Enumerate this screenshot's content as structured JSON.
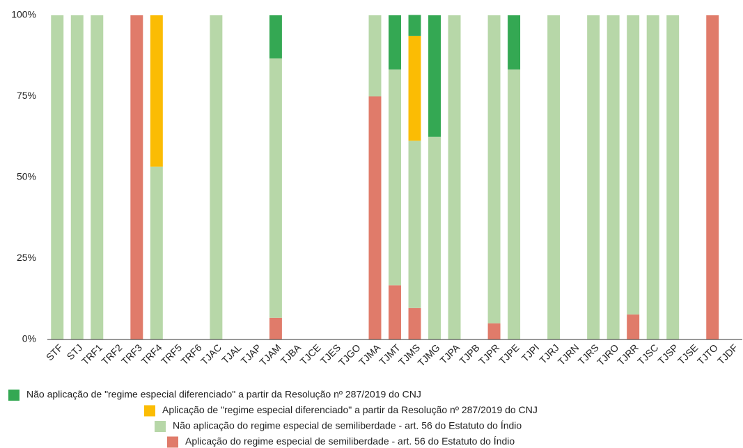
{
  "chart_data": {
    "type": "stacked_bar",
    "categories": [
      "STF",
      "STJ",
      "TRF1",
      "TRF2",
      "TRF3",
      "TRF4",
      "TRF5",
      "TRF6",
      "TJAC",
      "TJAL",
      "TJAP",
      "TJAM",
      "TJBA",
      "TJCE",
      "TJES",
      "TJGO",
      "TJMA",
      "TJMT",
      "TJMS",
      "TJMG",
      "TJPA",
      "TJPB",
      "TJPR",
      "TJPE",
      "TJPI",
      "TJRJ",
      "TJRN",
      "TJRS",
      "TJRO",
      "TJRR",
      "TJSC",
      "TJSP",
      "TJSE",
      "TJTO",
      "TJDF"
    ],
    "series": [
      {
        "name": "Não aplicação de \"regime especial diferenciado\" a partir da Resolução nº 287/2019 do CNJ",
        "color": "#34a853",
        "values": [
          0,
          0,
          0,
          0,
          0,
          0,
          0,
          0,
          0,
          0,
          0,
          13.3,
          0,
          0,
          0,
          0,
          0,
          16.7,
          6.5,
          37.5,
          0,
          0,
          0,
          16.7,
          0,
          0,
          0,
          0,
          0,
          0,
          0,
          0,
          0,
          0,
          0
        ]
      },
      {
        "name": "Aplicação de \"regime especial diferenciado\" a partir da Resolução nº 287/2019 do CNJ",
        "color": "#fbbc04",
        "values": [
          0,
          0,
          0,
          0,
          0,
          46.7,
          0,
          0,
          0,
          0,
          0,
          0,
          0,
          0,
          0,
          0,
          0,
          0,
          32.3,
          0,
          0,
          0,
          0,
          0,
          0,
          0,
          0,
          0,
          0,
          0,
          0,
          0,
          0,
          0,
          0
        ]
      },
      {
        "name": "Não aplicação do regime especial de semiliberdade - art. 56 do Estatuto do Índio",
        "color": "#b7d7a8",
        "values": [
          100,
          100,
          100,
          0,
          0,
          53.3,
          0,
          0,
          100,
          0,
          0,
          80,
          0,
          0,
          0,
          0,
          25,
          66.6,
          51.6,
          62.5,
          100,
          0,
          95,
          83.3,
          0,
          100,
          0,
          100,
          100,
          92.3,
          100,
          100,
          0,
          0,
          0
        ]
      },
      {
        "name": "Aplicação do regime especial de semiliberdade - art. 56 do Estatuto do Índio",
        "color": "#e07b6a",
        "values": [
          0,
          0,
          0,
          0,
          100,
          0,
          0,
          0,
          0,
          0,
          0,
          6.7,
          0,
          0,
          0,
          0,
          75,
          16.7,
          9.7,
          0,
          0,
          0,
          5,
          0,
          0,
          0,
          0,
          0,
          0,
          7.7,
          0,
          0,
          0,
          100,
          0
        ]
      }
    ],
    "ylim": [
      0,
      100
    ],
    "yticks": [
      {
        "value": 0,
        "label": "0%"
      },
      {
        "value": 25,
        "label": "25%"
      },
      {
        "value": 50,
        "label": "50%"
      },
      {
        "value": 75,
        "label": "75%"
      },
      {
        "value": 100,
        "label": "100%"
      }
    ],
    "grid": false
  }
}
